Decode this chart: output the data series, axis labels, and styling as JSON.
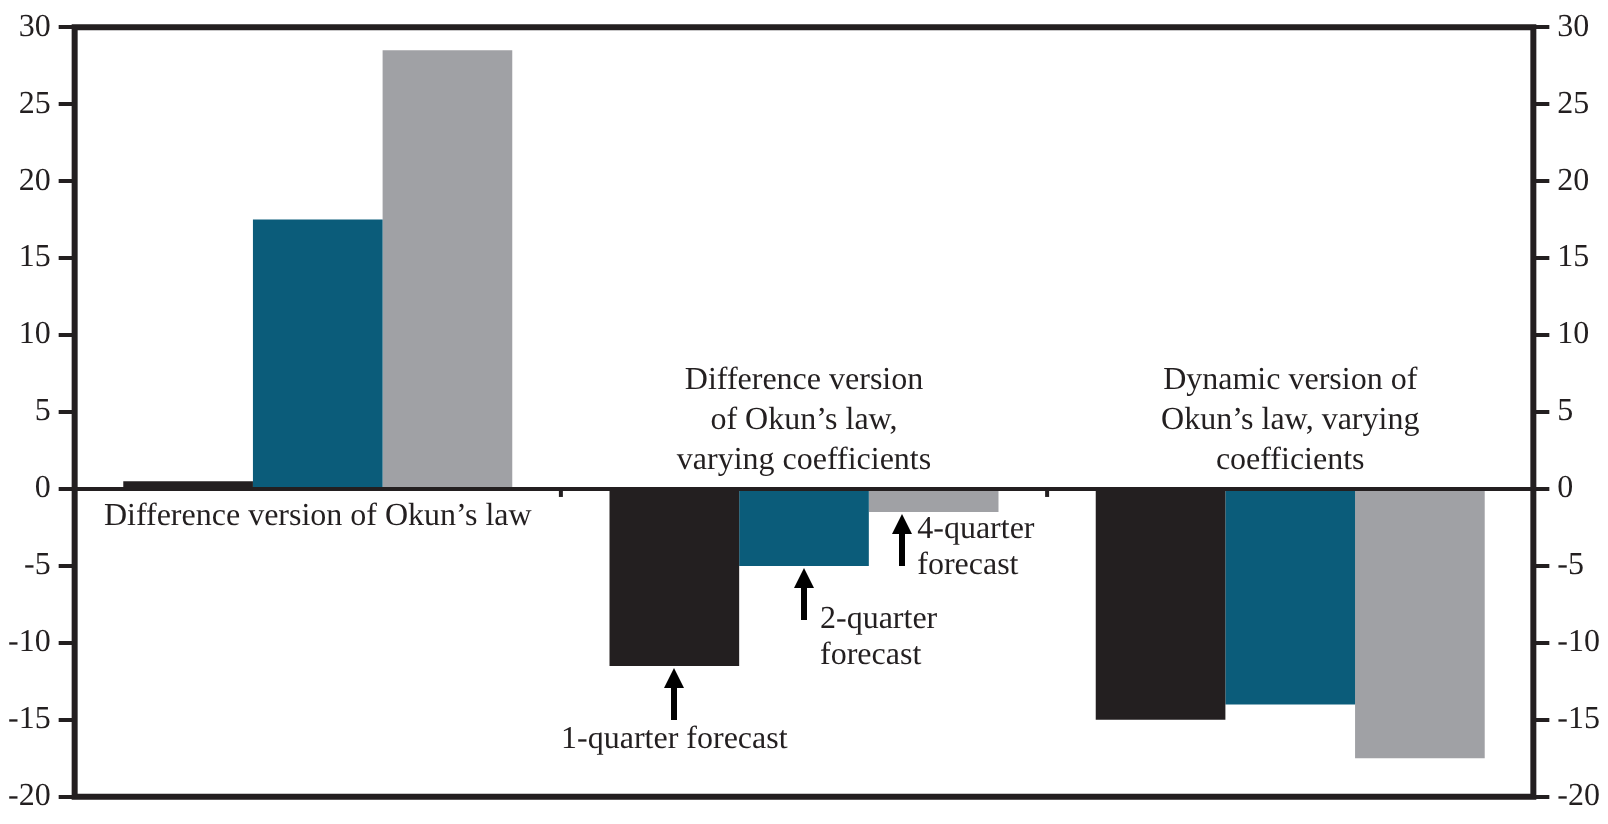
{
  "chart_data": {
    "type": "bar",
    "categories": [
      "Difference version of Okun’s law",
      "Difference version of Okun’s law, varying coefficients",
      "Dynamic version of Okun’s law, varying coefficients"
    ],
    "series": [
      {
        "name": "1-quarter forecast",
        "color": "#231f20",
        "values": [
          0.5,
          -11.5,
          -15
        ]
      },
      {
        "name": "2-quarter forecast",
        "color": "#0b5c7a",
        "values": [
          17.5,
          -5,
          -14
        ]
      },
      {
        "name": "4-quarter forecast",
        "color": "#a0a1a5",
        "values": [
          28.5,
          -1.5,
          -17.5
        ]
      }
    ],
    "ylim": [
      -20,
      30
    ],
    "yticks": [
      -20,
      -15,
      -10,
      -5,
      0,
      5,
      10,
      15,
      20,
      25,
      30
    ],
    "y2lim": [
      -20,
      30
    ],
    "y2ticks": [
      -20,
      -15,
      -10,
      -5,
      0,
      5,
      10,
      15,
      20,
      25,
      30
    ],
    "grid": false,
    "legend": false
  }
}
